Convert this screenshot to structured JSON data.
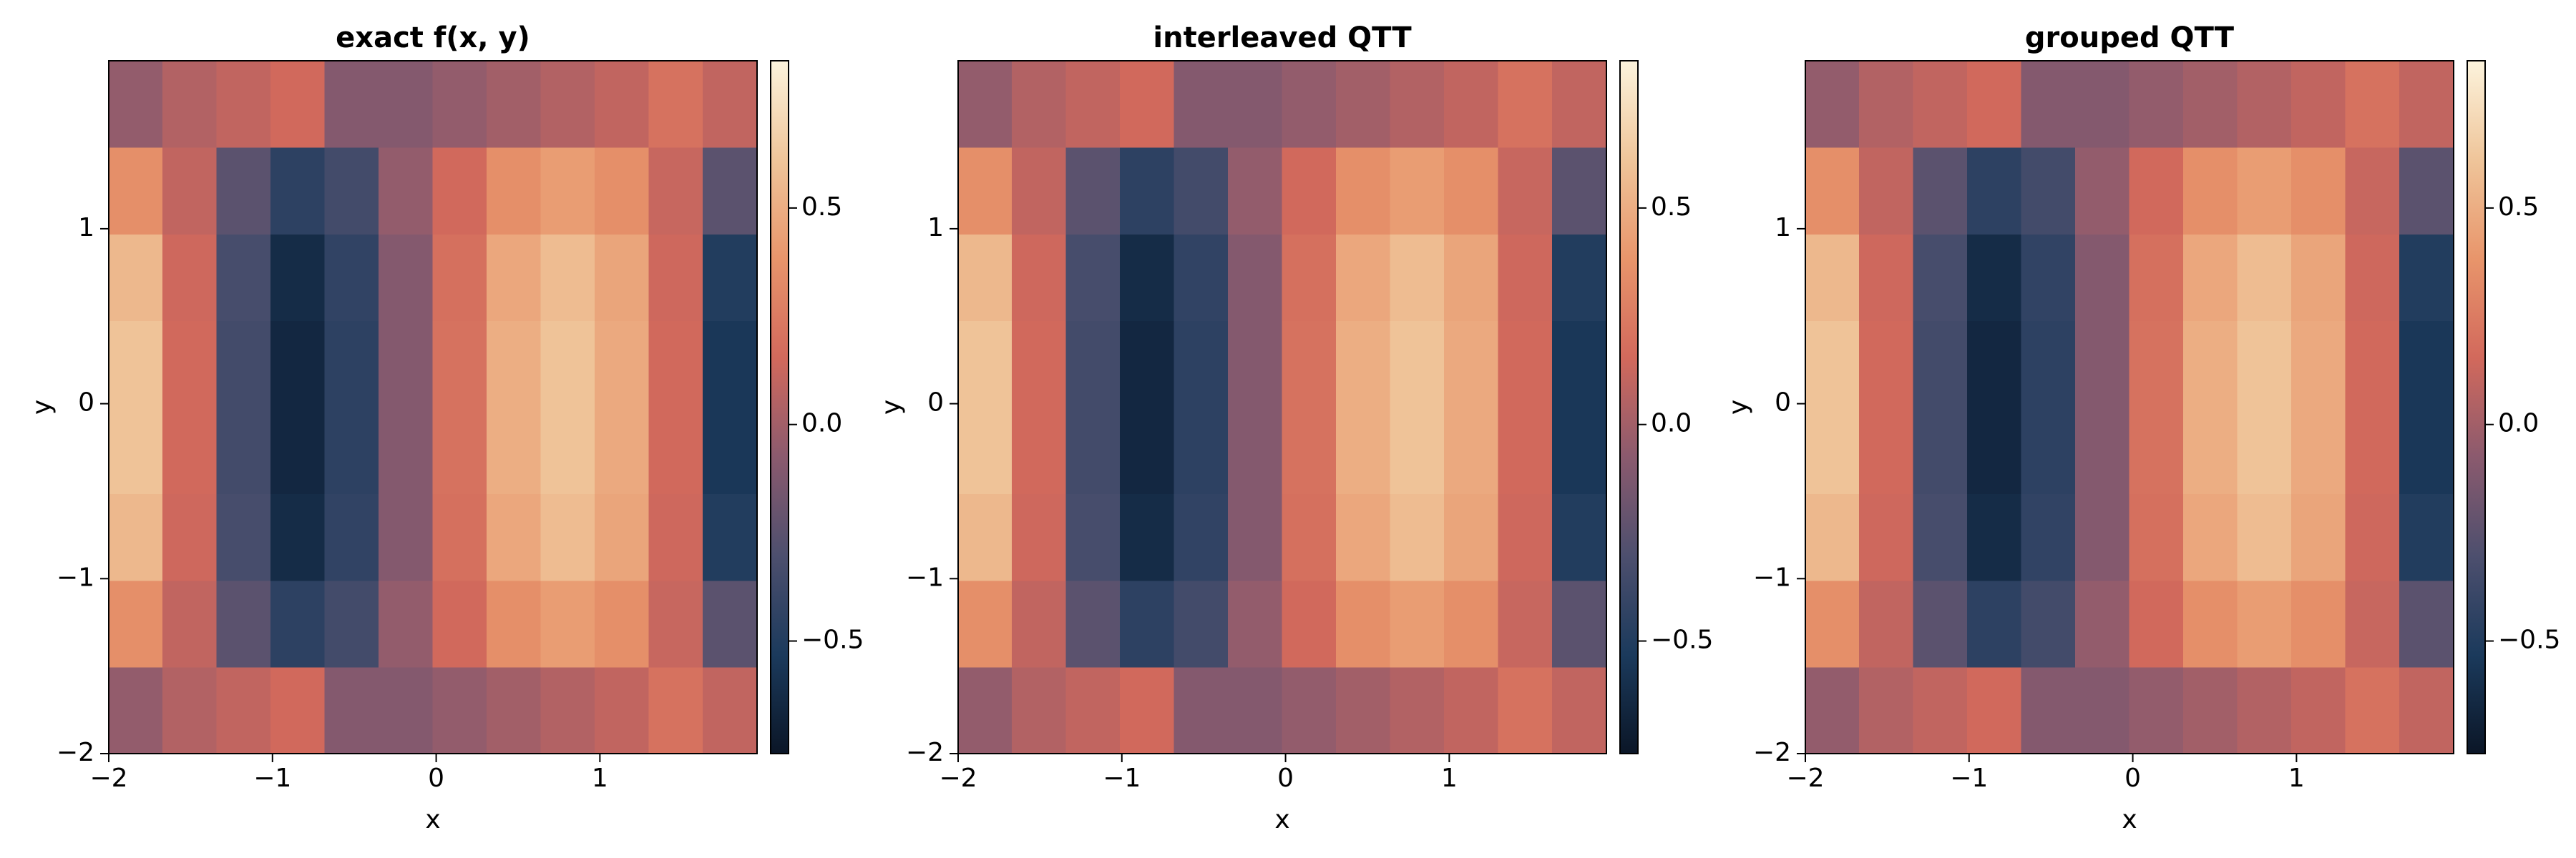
{
  "chart_data": [
    {
      "type": "heatmap",
      "title": "exact f(x, y)",
      "xlabel": "x",
      "ylabel": "y",
      "xbins": [
        -2,
        -1.67,
        -1.34,
        -1.01,
        -0.68,
        -0.35,
        -0.02,
        0.31,
        0.64,
        0.97,
        1.3,
        1.63,
        1.96
      ],
      "ybins": [
        -2,
        -1.505,
        -1.01,
        -0.515,
        -0.02,
        0.475,
        0.97,
        1.465,
        1.96
      ],
      "z": [
        [
          -0.05,
          0.05,
          0.1,
          0.15,
          -0.1,
          -0.1,
          -0.05,
          0.0,
          0.05,
          0.1,
          0.2,
          0.1
        ],
        [
          0.35,
          0.1,
          -0.25,
          -0.45,
          -0.35,
          -0.05,
          0.15,
          0.35,
          0.42,
          0.35,
          0.12,
          -0.25
        ],
        [
          0.55,
          0.14,
          -0.33,
          -0.62,
          -0.43,
          -0.1,
          0.19,
          0.47,
          0.57,
          0.46,
          0.14,
          -0.5
        ],
        [
          0.6,
          0.15,
          -0.35,
          -0.65,
          -0.45,
          -0.1,
          0.2,
          0.5,
          0.6,
          0.48,
          0.15,
          -0.55
        ],
        [
          0.6,
          0.15,
          -0.35,
          -0.65,
          -0.45,
          -0.1,
          0.2,
          0.5,
          0.6,
          0.48,
          0.15,
          -0.55
        ],
        [
          0.55,
          0.14,
          -0.33,
          -0.62,
          -0.43,
          -0.1,
          0.19,
          0.47,
          0.57,
          0.46,
          0.14,
          -0.5
        ],
        [
          0.35,
          0.1,
          -0.25,
          -0.45,
          -0.35,
          -0.05,
          0.15,
          0.35,
          0.42,
          0.35,
          0.12,
          -0.25
        ],
        [
          -0.05,
          0.05,
          0.1,
          0.15,
          -0.1,
          -0.1,
          -0.05,
          0.0,
          0.05,
          0.1,
          0.2,
          0.1
        ]
      ],
      "xlim": [
        -2,
        1.96
      ],
      "ylim": [
        -2,
        1.96
      ],
      "xticks": [
        {
          "value": -2,
          "label": "−2"
        },
        {
          "value": -1,
          "label": "−1"
        },
        0,
        1
      ],
      "yticks": [
        {
          "value": -2,
          "label": "−2"
        },
        {
          "value": -1,
          "label": "−1"
        },
        0,
        1
      ],
      "clim": [
        -0.76,
        0.84
      ],
      "cticks": [
        {
          "value": -0.5,
          "label": "−0.5"
        },
        {
          "value": 0,
          "label": "0.0"
        },
        0.5
      ],
      "colormap": [
        "#0b1627",
        "#1b3a5c",
        "#4d4f6e",
        "#8b5a6e",
        "#d2695c",
        "#e8956b",
        "#efc59a",
        "#fcf3dc"
      ]
    },
    {
      "type": "heatmap",
      "title": "interleaved QTT",
      "xlabel": "x",
      "ylabel": "y",
      "xbins": [
        -2,
        -1.67,
        -1.34,
        -1.01,
        -0.68,
        -0.35,
        -0.02,
        0.31,
        0.64,
        0.97,
        1.3,
        1.63,
        1.96
      ],
      "ybins": [
        -2,
        -1.505,
        -1.01,
        -0.515,
        -0.02,
        0.475,
        0.97,
        1.465,
        1.96
      ],
      "z": [
        [
          -0.05,
          0.05,
          0.1,
          0.15,
          -0.1,
          -0.1,
          -0.05,
          0.0,
          0.05,
          0.1,
          0.2,
          0.1
        ],
        [
          0.35,
          0.1,
          -0.25,
          -0.45,
          -0.35,
          -0.05,
          0.15,
          0.35,
          0.42,
          0.35,
          0.12,
          -0.25
        ],
        [
          0.55,
          0.14,
          -0.33,
          -0.62,
          -0.43,
          -0.1,
          0.19,
          0.47,
          0.57,
          0.46,
          0.14,
          -0.5
        ],
        [
          0.6,
          0.15,
          -0.35,
          -0.65,
          -0.45,
          -0.1,
          0.2,
          0.5,
          0.6,
          0.48,
          0.15,
          -0.55
        ],
        [
          0.6,
          0.15,
          -0.35,
          -0.65,
          -0.45,
          -0.1,
          0.2,
          0.5,
          0.6,
          0.48,
          0.15,
          -0.55
        ],
        [
          0.55,
          0.14,
          -0.33,
          -0.62,
          -0.43,
          -0.1,
          0.19,
          0.47,
          0.57,
          0.46,
          0.14,
          -0.5
        ],
        [
          0.35,
          0.1,
          -0.25,
          -0.45,
          -0.35,
          -0.05,
          0.15,
          0.35,
          0.42,
          0.35,
          0.12,
          -0.25
        ],
        [
          -0.05,
          0.05,
          0.1,
          0.15,
          -0.1,
          -0.1,
          -0.05,
          0.0,
          0.05,
          0.1,
          0.2,
          0.1
        ]
      ],
      "xlim": [
        -2,
        1.96
      ],
      "ylim": [
        -2,
        1.96
      ],
      "xticks": [
        {
          "value": -2,
          "label": "−2"
        },
        {
          "value": -1,
          "label": "−1"
        },
        0,
        1
      ],
      "yticks": [
        {
          "value": -2,
          "label": "−2"
        },
        {
          "value": -1,
          "label": "−1"
        },
        0,
        1
      ],
      "clim": [
        -0.76,
        0.84
      ],
      "cticks": [
        {
          "value": -0.5,
          "label": "−0.5"
        },
        {
          "value": 0,
          "label": "0.0"
        },
        0.5
      ],
      "colormap": [
        "#0b1627",
        "#1b3a5c",
        "#4d4f6e",
        "#8b5a6e",
        "#d2695c",
        "#e8956b",
        "#efc59a",
        "#fcf3dc"
      ]
    },
    {
      "type": "heatmap",
      "title": "grouped QTT",
      "xlabel": "x",
      "ylabel": "y",
      "xbins": [
        -2,
        -1.67,
        -1.34,
        -1.01,
        -0.68,
        -0.35,
        -0.02,
        0.31,
        0.64,
        0.97,
        1.3,
        1.63,
        1.96
      ],
      "ybins": [
        -2,
        -1.505,
        -1.01,
        -0.515,
        -0.02,
        0.475,
        0.97,
        1.465,
        1.96
      ],
      "z": [
        [
          -0.05,
          0.05,
          0.1,
          0.15,
          -0.1,
          -0.1,
          -0.05,
          0.0,
          0.05,
          0.1,
          0.2,
          0.1
        ],
        [
          0.35,
          0.1,
          -0.25,
          -0.45,
          -0.35,
          -0.05,
          0.15,
          0.35,
          0.42,
          0.35,
          0.12,
          -0.25
        ],
        [
          0.55,
          0.14,
          -0.33,
          -0.62,
          -0.43,
          -0.1,
          0.19,
          0.47,
          0.57,
          0.46,
          0.14,
          -0.5
        ],
        [
          0.6,
          0.15,
          -0.35,
          -0.65,
          -0.45,
          -0.1,
          0.2,
          0.5,
          0.6,
          0.48,
          0.15,
          -0.55
        ],
        [
          0.6,
          0.15,
          -0.35,
          -0.65,
          -0.45,
          -0.1,
          0.2,
          0.5,
          0.6,
          0.48,
          0.15,
          -0.55
        ],
        [
          0.55,
          0.14,
          -0.33,
          -0.62,
          -0.43,
          -0.1,
          0.19,
          0.47,
          0.57,
          0.46,
          0.14,
          -0.5
        ],
        [
          0.35,
          0.1,
          -0.25,
          -0.45,
          -0.35,
          -0.05,
          0.15,
          0.35,
          0.42,
          0.35,
          0.12,
          -0.25
        ],
        [
          -0.05,
          0.05,
          0.1,
          0.15,
          -0.1,
          -0.1,
          -0.05,
          0.0,
          0.05,
          0.1,
          0.2,
          0.1
        ]
      ],
      "xlim": [
        -2,
        1.96
      ],
      "ylim": [
        -2,
        1.96
      ],
      "xticks": [
        {
          "value": -2,
          "label": "−2"
        },
        {
          "value": -1,
          "label": "−1"
        },
        0,
        1
      ],
      "yticks": [
        {
          "value": -2,
          "label": "−2"
        },
        {
          "value": -1,
          "label": "−1"
        },
        0,
        1
      ],
      "clim": [
        -0.76,
        0.84
      ],
      "cticks": [
        {
          "value": -0.5,
          "label": "−0.5"
        },
        {
          "value": 0,
          "label": "0.0"
        },
        0.5
      ],
      "colormap": [
        "#0b1627",
        "#1b3a5c",
        "#4d4f6e",
        "#8b5a6e",
        "#d2695c",
        "#e8956b",
        "#efc59a",
        "#fcf3dc"
      ]
    }
  ]
}
